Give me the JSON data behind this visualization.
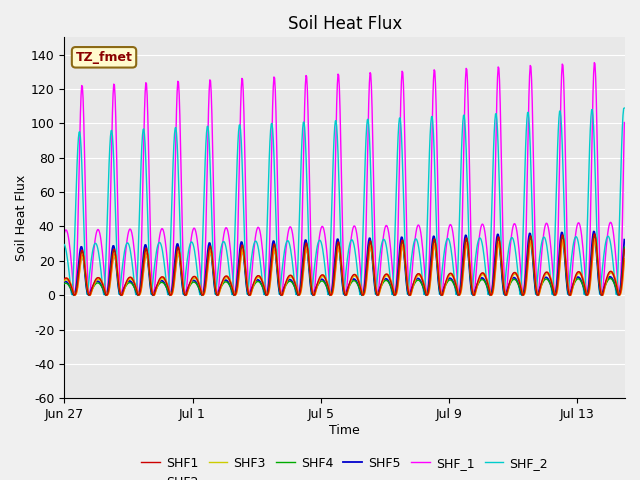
{
  "title": "Soil Heat Flux",
  "xlabel": "Time",
  "ylabel": "Soil Heat Flux",
  "annotation": "TZ_fmet",
  "annotation_color": "#8B0000",
  "annotation_bg": "#FFFACD",
  "annotation_border": "#8B6914",
  "ylim": [
    -60,
    150
  ],
  "yticks": [
    -60,
    -40,
    -20,
    0,
    20,
    40,
    60,
    80,
    100,
    120,
    140
  ],
  "xtick_positions": [
    0,
    4,
    8,
    12,
    16
  ],
  "xtick_labels": [
    "Jun 27",
    "Jul 1",
    "Jul 5",
    "Jul 9",
    "Jul 13"
  ],
  "series_colors": {
    "SHF1": "#cc0000",
    "SHF2": "#ff8800",
    "SHF3": "#cccc00",
    "SHF4": "#00aa00",
    "SHF5": "#0000cc",
    "SHF_1": "#ff00ff",
    "SHF_2": "#00cccc"
  },
  "background_color": "#e8e8e8",
  "plot_bg_color": "#f0f0f0",
  "grid_color": "#ffffff",
  "title_fontsize": 12,
  "axis_fontsize": 9,
  "legend_fontsize": 9
}
